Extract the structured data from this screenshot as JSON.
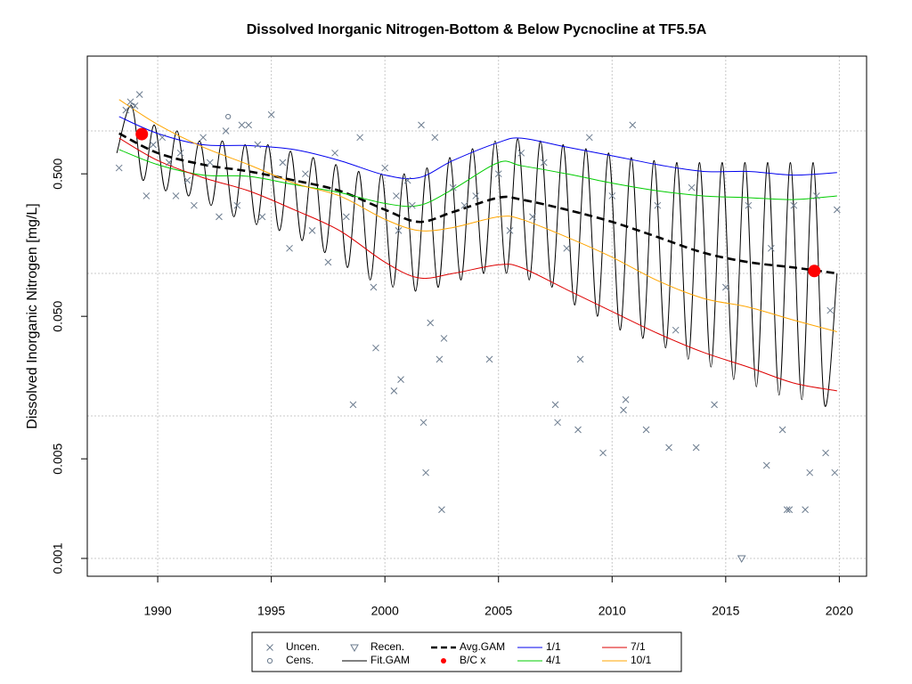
{
  "chart_data": {
    "type": "line",
    "title": "Dissolved Inorganic Nitrogen-Bottom & Below Pycnocline at TF5.5A",
    "y_label": "Dissolved Inorganic Nitrogen [mg/L]",
    "xlim": [
      1986.9,
      2021.2
    ],
    "ylim": [
      0.00075,
      3.35
    ],
    "log_y": true,
    "xticks": [
      1990,
      1995,
      2000,
      2005,
      2010,
      2015,
      2020
    ],
    "yticks": [
      0.001,
      0.005,
      {
        "value": 0.05,
        "label": "0.050"
      },
      {
        "value": 0.5,
        "label": "0.500"
      }
    ],
    "ygrid": [
      0.001,
      0.01,
      0.1,
      1
    ],
    "grid": true,
    "legend": "bottom",
    "series": [
      {
        "name": "Uncen.",
        "color": "#6b7b8e",
        "style": "x-points",
        "x": [
          1988.3,
          1988.6,
          1988.8,
          1989.0,
          1989.2,
          1989.5,
          1989.8,
          1990.2,
          1990.5,
          1990.8,
          1991.0,
          1991.3,
          1991.6,
          1992.0,
          1992.3,
          1992.7,
          1993.0,
          1993.5,
          1993.7,
          1994.0,
          1994.4,
          1994.6,
          1995.0,
          1995.5,
          1995.8,
          1996.5,
          1996.8,
          1997.5,
          1997.8,
          1998.3,
          1998.6,
          1998.9,
          1999.5,
          1999.6,
          2000.0,
          2000.5,
          2000.6,
          2000.4,
          2000.7,
          2001.0,
          2001.2,
          2001.6,
          2002.0,
          2002.2,
          2001.7,
          2001.8,
          2002.5,
          2002.4,
          2002.6,
          2003.0,
          2003.5,
          2004.0,
          2004.6,
          2005.0,
          2005.5,
          2006.0,
          2006.5,
          2007.0,
          2007.5,
          2007.6,
          2008.0,
          2008.5,
          2008.6,
          2009.0,
          2009.6,
          2010.0,
          2010.5,
          2010.6,
          2010.9,
          2011.5,
          2012.0,
          2012.5,
          2012.8,
          2013.5,
          2013.7,
          2014.5,
          2015.0,
          2016.0,
          2016.8,
          2017.0,
          2017.5,
          2017.7,
          2017.8,
          2018.0,
          2018.5,
          2018.7,
          2019.0,
          2019.4,
          2019.6,
          2019.8,
          2019.9
        ],
        "values": [
          0.55,
          1.4,
          1.6,
          1.5,
          1.8,
          0.35,
          0.8,
          0.9,
          0.6,
          0.35,
          0.7,
          0.45,
          0.3,
          0.9,
          0.6,
          0.25,
          1.0,
          0.3,
          1.1,
          1.1,
          0.8,
          0.25,
          1.3,
          0.6,
          0.15,
          0.5,
          0.2,
          0.12,
          0.7,
          0.25,
          0.012,
          0.9,
          0.08,
          0.03,
          0.55,
          0.35,
          0.2,
          0.015,
          0.018,
          0.45,
          0.3,
          1.1,
          0.045,
          0.9,
          0.009,
          0.004,
          0.0022,
          0.025,
          0.035,
          0.4,
          0.3,
          0.35,
          0.025,
          0.5,
          0.2,
          0.7,
          0.25,
          0.6,
          0.012,
          0.009,
          0.15,
          0.008,
          0.025,
          0.9,
          0.0055,
          0.35,
          0.011,
          0.013,
          1.1,
          0.008,
          0.3,
          0.006,
          0.04,
          0.4,
          0.006,
          0.012,
          0.08,
          0.3,
          0.0045,
          0.15,
          0.008,
          0.0022,
          0.0022,
          0.3,
          0.0022,
          0.004,
          0.35,
          0.0055,
          0.055,
          0.004,
          0.28
        ]
      },
      {
        "name": "Cens.",
        "color": "#6b7b8e",
        "style": "circle-points",
        "x": [
          1988.9,
          1993.1
        ],
        "values": [
          1.5,
          1.26
        ]
      },
      {
        "name": "Recen.",
        "color": "#6b7b8e",
        "style": "triangle-points",
        "x": [
          2015.7
        ],
        "values": [
          0.001
        ]
      },
      {
        "name": "Fit.GAM",
        "color": "#000000",
        "style": "line",
        "x": [
          1988.2,
          1988.85,
          1989.35,
          1989.85,
          1990.35,
          1990.85,
          1991.35,
          1991.85,
          1992.35,
          1992.85,
          1993.35,
          1993.85,
          1994.35,
          1994.85,
          1995.35,
          1995.85,
          1996.35,
          1996.85,
          1997.35,
          1997.85,
          1998.35,
          1998.85,
          1999.35,
          1999.85,
          2000.35,
          2000.85,
          2001.35,
          2001.85,
          2002.35,
          2002.85,
          2003.35,
          2003.85,
          2004.35,
          2004.85,
          2005.35,
          2005.85,
          2006.35,
          2006.85,
          2007.35,
          2007.85,
          2008.35,
          2008.85,
          2009.35,
          2009.85,
          2010.35,
          2010.85,
          2011.35,
          2011.85,
          2012.35,
          2012.85,
          2013.35,
          2013.85,
          2014.35,
          2014.85,
          2015.35,
          2015.85,
          2016.35,
          2016.85,
          2017.35,
          2017.85,
          2018.35,
          2018.85,
          2019.35,
          2019.9
        ],
        "values": [
          0.7,
          1.5,
          0.45,
          1.1,
          0.38,
          1.0,
          0.35,
          0.85,
          0.3,
          0.85,
          0.25,
          0.8,
          0.22,
          0.8,
          0.2,
          0.72,
          0.17,
          0.65,
          0.14,
          0.58,
          0.11,
          0.52,
          0.09,
          0.5,
          0.08,
          0.5,
          0.075,
          0.55,
          0.08,
          0.65,
          0.09,
          0.75,
          0.1,
          0.85,
          0.1,
          0.88,
          0.09,
          0.85,
          0.08,
          0.8,
          0.06,
          0.75,
          0.05,
          0.7,
          0.04,
          0.65,
          0.035,
          0.62,
          0.03,
          0.6,
          0.025,
          0.6,
          0.022,
          0.6,
          0.018,
          0.6,
          0.016,
          0.6,
          0.014,
          0.6,
          0.013,
          0.6,
          0.012,
          0.1
        ]
      },
      {
        "name": "Avg.GAM",
        "color": "#000000",
        "style": "dashed-line",
        "x": [
          1988.3,
          1990,
          1992,
          1994,
          1996,
          1998,
          2000,
          2001.5,
          2003,
          2005,
          2006,
          2008,
          2010,
          2012,
          2014,
          2016,
          2018,
          2019.9
        ],
        "values": [
          0.96,
          0.7,
          0.58,
          0.52,
          0.45,
          0.38,
          0.28,
          0.23,
          0.27,
          0.34,
          0.33,
          0.28,
          0.23,
          0.18,
          0.14,
          0.12,
          0.11,
          0.1
        ]
      },
      {
        "name": "B/C x",
        "color": "#ff0000",
        "style": "dot-points",
        "x": [
          1989.3,
          2018.9
        ],
        "values": [
          0.95,
          0.104
        ]
      },
      {
        "name": "1/1",
        "color": "#0000ee",
        "style": "line",
        "x": [
          1988.3,
          1990,
          1992,
          1994,
          1996,
          1998,
          2000,
          2001.5,
          2003,
          2005,
          2006,
          2008,
          2010,
          2012,
          2014,
          2016,
          2018,
          2019.9
        ],
        "values": [
          1.26,
          0.96,
          0.8,
          0.79,
          0.74,
          0.62,
          0.49,
          0.47,
          0.62,
          0.83,
          0.89,
          0.77,
          0.67,
          0.58,
          0.52,
          0.52,
          0.49,
          0.51
        ]
      },
      {
        "name": "4/1",
        "color": "#00cc00",
        "style": "line",
        "x": [
          1988.3,
          1990,
          1992,
          1994,
          1996,
          1998,
          2000,
          2001.5,
          2003,
          2005,
          2006,
          2008,
          2010,
          2012,
          2014,
          2016,
          2018,
          2019.9
        ],
        "values": [
          0.74,
          0.58,
          0.49,
          0.48,
          0.42,
          0.37,
          0.31,
          0.3,
          0.39,
          0.6,
          0.57,
          0.5,
          0.43,
          0.38,
          0.35,
          0.34,
          0.33,
          0.35
        ]
      },
      {
        "name": "7/1",
        "color": "#dd0000",
        "style": "line",
        "x": [
          1988.3,
          1990,
          1992,
          1994,
          1996,
          1998,
          2000,
          2001.5,
          2003,
          2005,
          2006,
          2008,
          2010,
          2012,
          2014,
          2016,
          2018,
          2019.9
        ],
        "values": [
          0.89,
          0.62,
          0.47,
          0.38,
          0.28,
          0.2,
          0.12,
          0.093,
          0.1,
          0.115,
          0.11,
          0.077,
          0.054,
          0.038,
          0.028,
          0.022,
          0.017,
          0.015
        ]
      },
      {
        "name": "10/1",
        "color": "#ffa500",
        "style": "line",
        "x": [
          1988.3,
          1990,
          1992,
          1994,
          1996,
          1998,
          2000,
          2001.5,
          2003,
          2005,
          2006,
          2008,
          2010,
          2012,
          2014,
          2016,
          2018,
          2019.9
        ],
        "values": [
          1.66,
          1.11,
          0.77,
          0.58,
          0.43,
          0.35,
          0.24,
          0.2,
          0.21,
          0.25,
          0.24,
          0.18,
          0.13,
          0.089,
          0.067,
          0.058,
          0.047,
          0.039
        ]
      }
    ]
  }
}
